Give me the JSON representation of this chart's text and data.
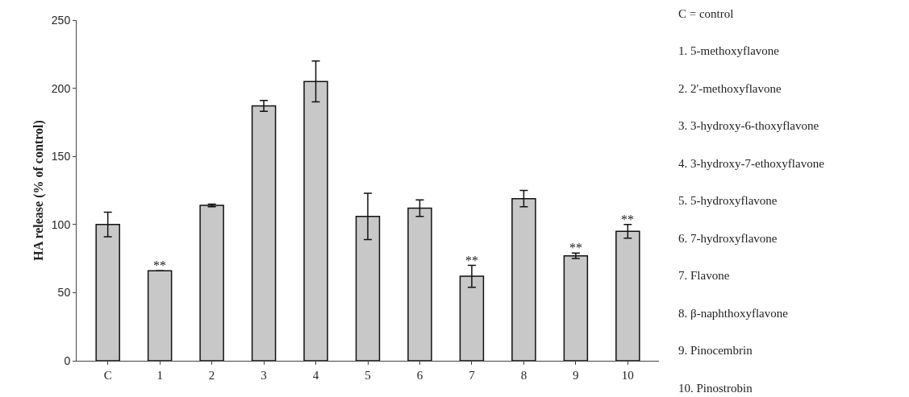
{
  "chart_data": {
    "type": "bar",
    "ylabel": "HA release (% of control)",
    "categories": [
      "C",
      "1",
      "2",
      "3",
      "4",
      "5",
      "6",
      "7",
      "8",
      "9",
      "10"
    ],
    "values": [
      100,
      66,
      114,
      187,
      205,
      106,
      112,
      62,
      119,
      77,
      95
    ],
    "errors": [
      9,
      null,
      1,
      4,
      15,
      17,
      6,
      8,
      6,
      2,
      5
    ],
    "color": "#c8c8c8",
    "ylim": [
      0,
      250
    ],
    "yticks": [
      0,
      50,
      100,
      150,
      200,
      250
    ],
    "grid": false,
    "annotations": [
      {
        "text": "**",
        "x": "1",
        "y": 66
      },
      {
        "text": "**",
        "x": "7",
        "y": 70
      },
      {
        "text": "**",
        "x": "9",
        "y": 79
      },
      {
        "text": "**",
        "x": "10",
        "y": 100
      },
      "C = control",
      "1. 5-methoxyflavone",
      "2. 2'-methoxyflavone",
      "3. 3-hydroxy-6-thoxyflavone",
      "4. 3-hydroxy-7-ethoxyflavone",
      "5. 5-hydroxyflavone",
      "6. 7-hydroxyflavone",
      "7. Flavone",
      "8. β-naphthoxyflavone",
      "9. Pinocembrin",
      "10. Pinostrobin"
    ]
  }
}
